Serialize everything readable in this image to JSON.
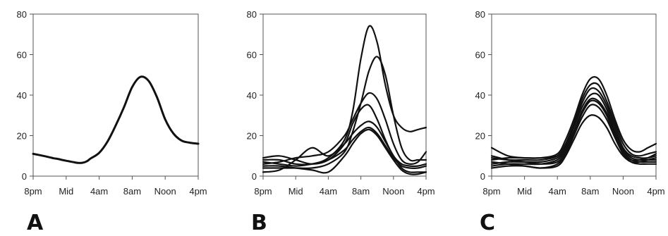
{
  "chart_data": [
    {
      "type": "line",
      "panel_label": "A",
      "title": "",
      "xlabel": "",
      "ylabel": "",
      "x_categories": [
        "8pm",
        "Mid",
        "4am",
        "8am",
        "Noon",
        "4pm"
      ],
      "y_ticks": [
        0,
        20,
        40,
        60,
        80
      ],
      "ylim": [
        0,
        80
      ],
      "grid": false,
      "series": [
        {
          "x": [
            0,
            1,
            2,
            2.5,
            3,
            3.5,
            4,
            4.5,
            5,
            5.5,
            6,
            6.5,
            7,
            8,
            9,
            10,
            11,
            12,
            13,
            14,
            15,
            16,
            17,
            18,
            19,
            20
          ],
          "y": [
            11,
            10.2,
            9.3,
            8.8,
            8.5,
            8,
            7.6,
            7.2,
            6.8,
            6.5,
            6.6,
            7.3,
            8.8,
            11.5,
            17,
            25,
            34,
            44,
            49,
            47,
            39,
            28,
            21,
            17.5,
            16.5,
            16
          ]
        }
      ]
    },
    {
      "type": "line",
      "panel_label": "B",
      "title": "",
      "xlabel": "",
      "ylabel": "",
      "x_categories": [
        "8pm",
        "Mid",
        "4am",
        "8am",
        "Noon",
        "4pm"
      ],
      "y_ticks": [
        0,
        20,
        40,
        60,
        80
      ],
      "ylim": [
        0,
        80
      ],
      "grid": false,
      "series": [
        {
          "x": [
            0,
            2,
            4,
            6,
            8,
            10,
            11,
            12,
            13,
            14,
            15,
            16,
            17,
            18,
            19,
            20
          ],
          "y": [
            8,
            8,
            6,
            6,
            9,
            18,
            32,
            58,
            74,
            66,
            45,
            30,
            24,
            22,
            23,
            24
          ]
        },
        {
          "x": [
            0,
            2,
            4,
            6,
            8,
            10,
            11,
            12,
            13,
            14,
            15,
            16,
            17,
            18,
            19,
            20
          ],
          "y": [
            4,
            4,
            4,
            4,
            6,
            12,
            22,
            36,
            52,
            59,
            50,
            30,
            14,
            8,
            8,
            8
          ]
        },
        {
          "x": [
            0,
            2,
            4,
            6,
            8,
            10,
            11,
            12,
            13,
            14,
            15,
            16,
            17,
            18,
            19,
            20
          ],
          "y": [
            6,
            7,
            9,
            10,
            12,
            20,
            28,
            36,
            41,
            38,
            28,
            16,
            8,
            6,
            7,
            12
          ]
        },
        {
          "x": [
            0,
            2,
            4,
            6,
            8,
            10,
            11,
            12,
            13,
            14,
            15,
            16,
            17,
            18,
            19,
            20
          ],
          "y": [
            9,
            10,
            8,
            6,
            8,
            16,
            26,
            33,
            35,
            28,
            18,
            10,
            6,
            5,
            5,
            6
          ]
        },
        {
          "x": [
            0,
            2,
            4,
            6,
            8,
            10,
            11,
            12,
            13,
            14,
            15,
            16,
            17,
            18,
            19,
            20
          ],
          "y": [
            2,
            3,
            8,
            14,
            10,
            16,
            21,
            25,
            27,
            24,
            17,
            10,
            4,
            2,
            2,
            2
          ]
        },
        {
          "x": [
            0,
            2,
            4,
            6,
            8,
            10,
            11,
            12,
            13,
            14,
            15,
            16,
            17,
            18,
            19,
            20
          ],
          "y": [
            7,
            6,
            5,
            6,
            8,
            13,
            18,
            22,
            24,
            21,
            15,
            9,
            5,
            4,
            4,
            5
          ]
        },
        {
          "x": [
            0,
            2,
            4,
            6,
            8,
            10,
            11,
            12,
            13,
            14,
            15,
            16,
            17,
            18,
            19,
            20
          ],
          "y": [
            5,
            5,
            4,
            3,
            2,
            10,
            16,
            21,
            23,
            20,
            14,
            8,
            3,
            1,
            1,
            2
          ]
        }
      ]
    },
    {
      "type": "line",
      "panel_label": "C",
      "title": "",
      "xlabel": "",
      "ylabel": "",
      "x_categories": [
        "8pm",
        "Mid",
        "4am",
        "8am",
        "Noon",
        "4pm"
      ],
      "y_ticks": [
        0,
        20,
        40,
        60,
        80
      ],
      "ylim": [
        0,
        80
      ],
      "grid": false,
      "series": [
        {
          "x": [
            0,
            2,
            4,
            6,
            8,
            9,
            10,
            11,
            12,
            13,
            14,
            15,
            16,
            17,
            18,
            19,
            20
          ],
          "y": [
            14,
            10,
            9,
            9,
            11,
            18,
            28,
            40,
            48,
            48,
            40,
            28,
            18,
            13,
            12,
            14,
            16
          ]
        },
        {
          "x": [
            0,
            2,
            4,
            6,
            8,
            9,
            10,
            11,
            12,
            13,
            14,
            15,
            16,
            17,
            18,
            19,
            20
          ],
          "y": [
            9,
            8,
            8,
            8,
            10,
            16,
            26,
            38,
            45,
            45,
            37,
            26,
            16,
            11,
            10,
            11,
            12
          ]
        },
        {
          "x": [
            0,
            2,
            4,
            6,
            8,
            9,
            10,
            11,
            12,
            13,
            14,
            15,
            16,
            17,
            18,
            19,
            20
          ],
          "y": [
            8,
            9,
            9,
            9,
            10,
            15,
            25,
            36,
            43,
            42,
            35,
            24,
            14,
            10,
            9,
            9,
            10
          ]
        },
        {
          "x": [
            0,
            2,
            4,
            6,
            8,
            9,
            10,
            11,
            12,
            13,
            14,
            15,
            16,
            17,
            18,
            19,
            20
          ],
          "y": [
            6,
            7,
            7,
            7,
            9,
            14,
            24,
            34,
            40,
            40,
            33,
            22,
            13,
            9,
            8,
            8,
            8
          ]
        },
        {
          "x": [
            0,
            2,
            4,
            6,
            8,
            9,
            10,
            11,
            12,
            13,
            14,
            15,
            16,
            17,
            18,
            19,
            20
          ],
          "y": [
            5,
            6,
            6,
            6,
            8,
            13,
            22,
            32,
            38,
            37,
            31,
            21,
            12,
            8,
            7,
            7,
            7
          ]
        },
        {
          "x": [
            0,
            2,
            4,
            6,
            8,
            9,
            10,
            11,
            12,
            13,
            14,
            15,
            16,
            17,
            18,
            19,
            20
          ],
          "y": [
            4,
            5,
            5,
            4,
            6,
            11,
            20,
            29,
            35,
            34,
            28,
            19,
            11,
            7,
            6,
            6,
            6
          ]
        },
        {
          "x": [
            0,
            2,
            4,
            6,
            8,
            9,
            10,
            11,
            12,
            13,
            14,
            15,
            16,
            17,
            18,
            19,
            20
          ],
          "y": [
            7,
            6,
            5,
            4,
            5,
            10,
            18,
            26,
            30,
            29,
            24,
            16,
            10,
            7,
            7,
            8,
            9
          ]
        },
        {
          "x": [
            0,
            2,
            4,
            6,
            8,
            9,
            10,
            11,
            12,
            13,
            14,
            15,
            16,
            17,
            18,
            19,
            20
          ],
          "y": [
            10,
            8,
            7,
            6,
            7,
            12,
            21,
            31,
            37,
            36,
            30,
            20,
            12,
            8,
            8,
            9,
            11
          ]
        }
      ]
    }
  ]
}
